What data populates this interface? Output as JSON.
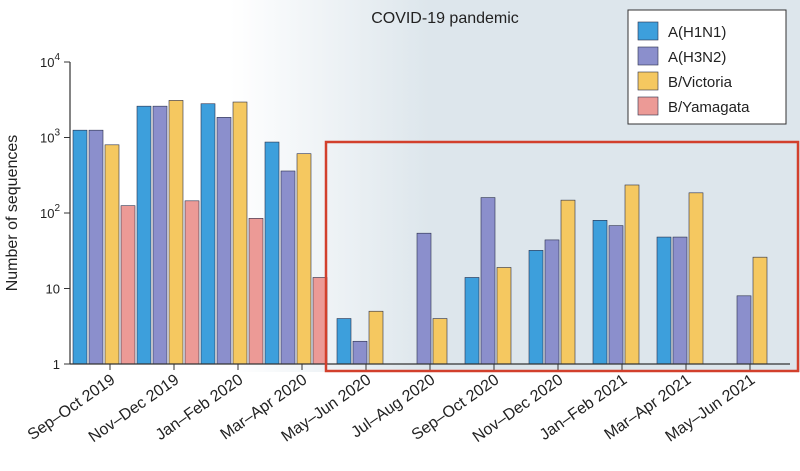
{
  "chart_data": {
    "type": "bar",
    "yscale": "log",
    "title": "",
    "xlabel": "",
    "ylabel": "Number of sequences",
    "ylim": [
      1,
      10000
    ],
    "yticks": [
      {
        "value": 1,
        "base": "1",
        "exp": ""
      },
      {
        "value": 10,
        "base": "10",
        "exp": ""
      },
      {
        "value": 100,
        "base": "10",
        "exp": "2"
      },
      {
        "value": 1000,
        "base": "10",
        "exp": "3"
      },
      {
        "value": 10000,
        "base": "10",
        "exp": "4"
      }
    ],
    "categories": [
      "Sep–Oct 2019",
      "Nov–Dec 2019",
      "Jan–Feb 2020",
      "Mar–Apr 2020",
      "May–Jun 2020",
      "Jul–Aug 2020",
      "Sep–Oct 2020",
      "Nov–Dec 2020",
      "Jan–Feb 2021",
      "Mar–Apr 2021",
      "May–Jun 2021"
    ],
    "series": [
      {
        "name": "A(H1N1)",
        "color": "#3d9fdc",
        "values": [
          1250,
          2600,
          2800,
          870,
          4,
          null,
          14,
          32,
          80,
          48,
          null
        ]
      },
      {
        "name": "A(H3N2)",
        "color": "#8b8fcc",
        "values": [
          1250,
          2600,
          1850,
          360,
          2,
          54,
          160,
          44,
          68,
          48,
          8
        ]
      },
      {
        "name": "B/Victoria",
        "color": "#f5c860",
        "values": [
          800,
          3100,
          2950,
          610,
          5,
          4,
          19,
          148,
          235,
          185,
          26
        ]
      },
      {
        "name": "B/Yamagata",
        "color": "#ec9a96",
        "values": [
          125,
          145,
          85,
          14,
          null,
          null,
          null,
          null,
          null,
          null,
          null
        ]
      }
    ],
    "legend_position": "top-right",
    "annotations": {
      "pandemic_label": "COVID-19 pandemic",
      "pandemic_start_category": "Mar–Apr 2020",
      "highlight_from": "May–Jun 2020",
      "highlight_to": "May–Jun 2021"
    },
    "colors": {
      "pandemic_shade": "#dde6ec",
      "highlight_box": "#d2402c",
      "axis": "#333333"
    }
  }
}
